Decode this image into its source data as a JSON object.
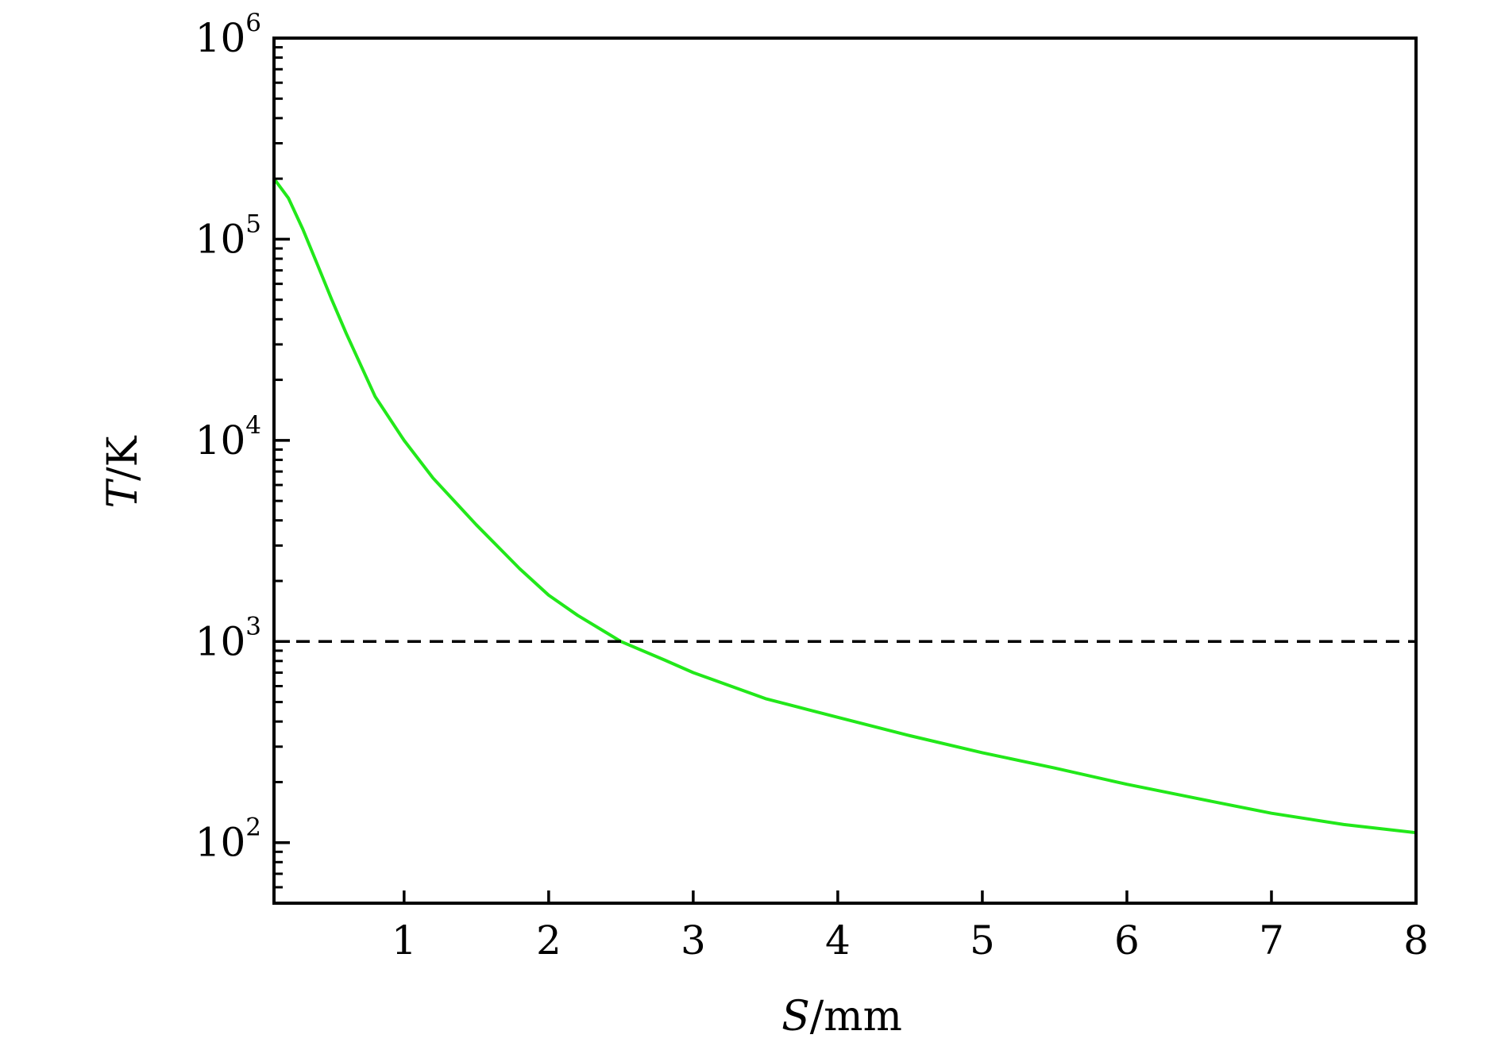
{
  "chart_data": {
    "type": "line",
    "xlabel": {
      "var": "S",
      "unit": "/mm"
    },
    "ylabel": {
      "var": "T",
      "unit": "/K"
    },
    "xlim": [
      0.1,
      8
    ],
    "ylim": [
      50,
      1000000
    ],
    "yscale": "log",
    "grid": false,
    "legend": "none",
    "x_ticks": [
      {
        "value": 1,
        "label": "1"
      },
      {
        "value": 2,
        "label": "2"
      },
      {
        "value": 3,
        "label": "3"
      },
      {
        "value": 4,
        "label": "4"
      },
      {
        "value": 5,
        "label": "5"
      },
      {
        "value": 6,
        "label": "6"
      },
      {
        "value": 7,
        "label": "7"
      },
      {
        "value": 8,
        "label": "8"
      }
    ],
    "y_ticks": [
      {
        "value": 100,
        "base": "10",
        "exp": "2"
      },
      {
        "value": 1000,
        "base": "10",
        "exp": "3"
      },
      {
        "value": 10000,
        "base": "10",
        "exp": "4"
      },
      {
        "value": 100000,
        "base": "10",
        "exp": "5"
      },
      {
        "value": 1000000,
        "base": "10",
        "exp": "6"
      }
    ],
    "series": [
      {
        "color": "#22e81a",
        "style": "solid",
        "x": [
          0.1,
          0.2,
          0.3,
          0.4,
          0.5,
          0.6,
          0.8,
          1.0,
          1.2,
          1.5,
          1.8,
          2.0,
          2.2,
          2.5,
          2.8,
          3.0,
          3.5,
          4.0,
          4.5,
          5.0,
          5.5,
          6.0,
          6.5,
          7.0,
          7.5,
          8.0
        ],
        "y": [
          200000,
          160000,
          112000,
          75000,
          50000,
          34000,
          16500,
          10000,
          6500,
          3800,
          2300,
          1700,
          1350,
          1000,
          810,
          700,
          520,
          420,
          340,
          280,
          235,
          195,
          165,
          140,
          123,
          112
        ]
      },
      {
        "color": "#000000",
        "style": "dashed",
        "x": [
          0.1,
          8.0
        ],
        "y": [
          1000,
          1000
        ]
      }
    ]
  }
}
